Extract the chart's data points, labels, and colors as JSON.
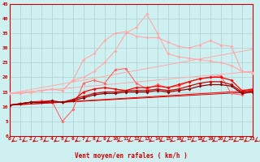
{
  "xlabel": "Vent moyen/en rafales ( km/h )",
  "bg_color": "#cff0f0",
  "grid_color": "#b0d0d0",
  "xmin": 0,
  "xmax": 23,
  "ymin": 0,
  "ymax": 45,
  "series": [
    {
      "color": "#ffaaaa",
      "linewidth": 0.8,
      "markersize": 2.0,
      "x": [
        0,
        1,
        2,
        3,
        4,
        5,
        6,
        7,
        8,
        9,
        10,
        11,
        12,
        13,
        14,
        15,
        16,
        17,
        18,
        19,
        20,
        21,
        22,
        23
      ],
      "y": [
        14.5,
        14.5,
        15.0,
        15.5,
        16.0,
        15.5,
        19.0,
        26.0,
        28.0,
        32.5,
        35.0,
        35.5,
        34.0,
        33.5,
        33.5,
        32.0,
        30.5,
        30.0,
        31.0,
        32.5,
        31.0,
        30.5,
        22.0,
        21.5
      ]
    },
    {
      "color": "#ffaaaa",
      "linewidth": 0.8,
      "markersize": 2.0,
      "x": [
        0,
        1,
        2,
        3,
        4,
        5,
        6,
        7,
        8,
        9,
        10,
        11,
        12,
        13,
        14,
        15,
        16,
        17,
        18,
        19,
        20,
        21,
        22,
        23
      ],
      "y": [
        14.5,
        14.5,
        15.0,
        15.5,
        16.0,
        15.5,
        19.0,
        20.0,
        22.0,
        25.0,
        29.0,
        35.0,
        37.0,
        41.5,
        35.0,
        28.0,
        27.0,
        26.5,
        26.0,
        25.5,
        25.0,
        24.0,
        22.0,
        21.5
      ]
    },
    {
      "color": "#ff6666",
      "linewidth": 0.8,
      "markersize": 2.0,
      "x": [
        0,
        1,
        2,
        3,
        4,
        5,
        6,
        7,
        8,
        9,
        10,
        11,
        12,
        13,
        14,
        15,
        16,
        17,
        18,
        19,
        20,
        21,
        22,
        23
      ],
      "y": [
        10.5,
        11.0,
        11.5,
        12.0,
        12.0,
        5.0,
        9.0,
        18.0,
        19.0,
        18.0,
        22.5,
        23.0,
        18.0,
        16.0,
        17.5,
        16.5,
        17.0,
        18.5,
        19.5,
        20.0,
        20.5,
        14.5,
        14.0,
        16.0
      ]
    },
    {
      "color": "#ff0000",
      "linewidth": 0.9,
      "markersize": 2.0,
      "x": [
        0,
        1,
        2,
        3,
        4,
        5,
        6,
        7,
        8,
        9,
        10,
        11,
        12,
        13,
        14,
        15,
        16,
        17,
        18,
        19,
        20,
        21,
        22,
        23
      ],
      "y": [
        10.5,
        11.0,
        11.5,
        11.5,
        11.5,
        11.5,
        12.0,
        15.0,
        16.0,
        16.5,
        16.0,
        15.5,
        16.5,
        16.5,
        17.0,
        16.5,
        17.5,
        18.5,
        19.5,
        20.0,
        20.0,
        19.0,
        15.5,
        16.0
      ]
    },
    {
      "color": "#cc0000",
      "linewidth": 0.9,
      "markersize": 2.0,
      "x": [
        0,
        1,
        2,
        3,
        4,
        5,
        6,
        7,
        8,
        9,
        10,
        11,
        12,
        13,
        14,
        15,
        16,
        17,
        18,
        19,
        20,
        21,
        22,
        23
      ],
      "y": [
        10.5,
        11.0,
        11.5,
        11.5,
        11.5,
        11.5,
        12.5,
        13.5,
        14.5,
        15.0,
        15.0,
        15.5,
        15.5,
        15.5,
        16.0,
        15.5,
        16.0,
        17.0,
        18.0,
        18.5,
        18.5,
        17.5,
        15.0,
        15.5
      ]
    },
    {
      "color": "#880000",
      "linewidth": 0.9,
      "markersize": 2.0,
      "x": [
        0,
        1,
        2,
        3,
        4,
        5,
        6,
        7,
        8,
        9,
        10,
        11,
        12,
        13,
        14,
        15,
        16,
        17,
        18,
        19,
        20,
        21,
        22,
        23
      ],
      "y": [
        10.5,
        11.0,
        11.5,
        11.5,
        12.0,
        11.5,
        12.0,
        13.0,
        14.0,
        14.5,
        14.5,
        15.0,
        15.0,
        15.0,
        15.5,
        15.0,
        15.5,
        16.0,
        17.0,
        17.5,
        17.5,
        17.0,
        14.5,
        15.0
      ]
    },
    {
      "color": "#ffaaaa",
      "linewidth": 0.7,
      "markersize": 0,
      "x": [
        0,
        23
      ],
      "y": [
        14.5,
        29.5
      ]
    },
    {
      "color": "#ffaaaa",
      "linewidth": 0.7,
      "markersize": 0,
      "x": [
        0,
        23
      ],
      "y": [
        14.5,
        22.0
      ]
    },
    {
      "color": "#ff0000",
      "linewidth": 0.7,
      "markersize": 0,
      "x": [
        0,
        23
      ],
      "y": [
        10.5,
        15.5
      ]
    },
    {
      "color": "#cc0000",
      "linewidth": 0.7,
      "markersize": 0,
      "x": [
        0,
        23
      ],
      "y": [
        10.5,
        15.0
      ]
    }
  ],
  "arrow_color": "#cc0000",
  "xticks": [
    0,
    1,
    2,
    3,
    4,
    5,
    6,
    7,
    8,
    9,
    10,
    11,
    12,
    13,
    14,
    15,
    16,
    17,
    18,
    19,
    20,
    21,
    22,
    23
  ],
  "yticks": [
    0,
    5,
    10,
    15,
    20,
    25,
    30,
    35,
    40,
    45
  ],
  "tick_fontsize": 4.5,
  "tick_color": "#cc0000",
  "xlabel_fontsize": 5.5,
  "xlabel_color": "#cc0000"
}
